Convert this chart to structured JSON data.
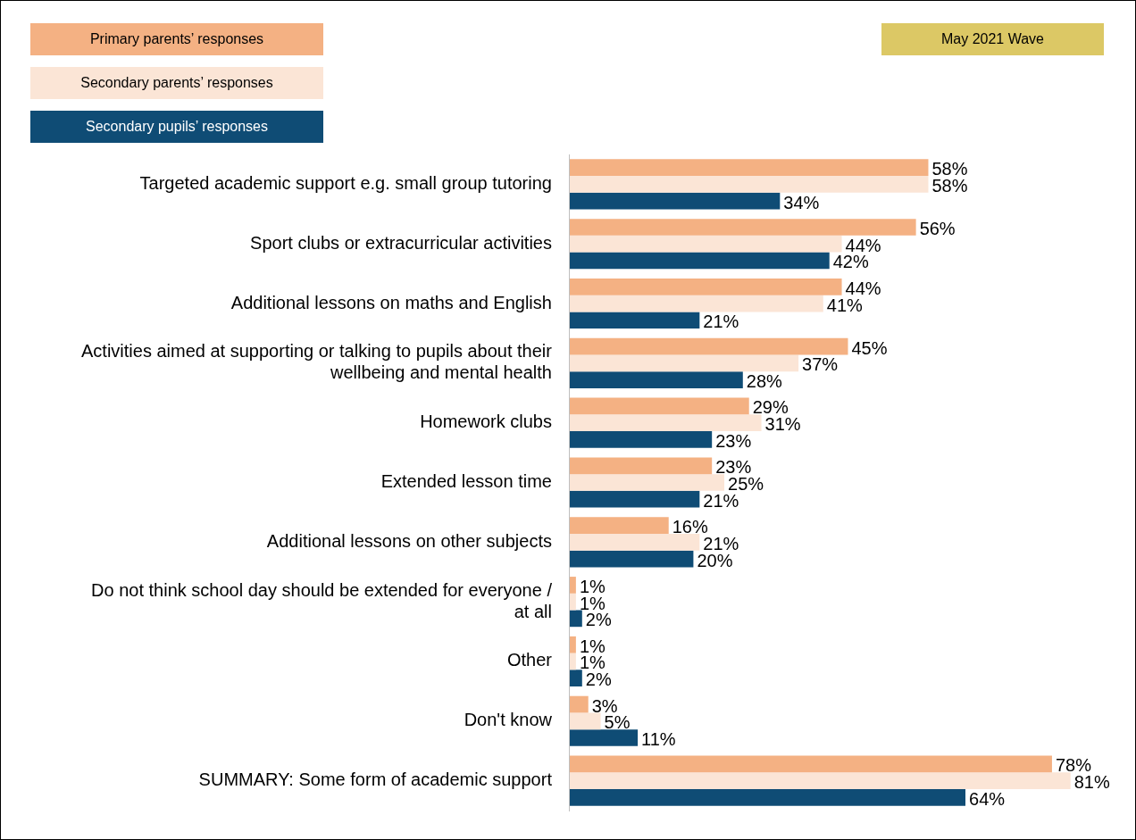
{
  "chart_data": {
    "type": "bar",
    "orientation": "horizontal",
    "categories": [
      "Targeted academic support e.g. small group tutoring",
      "Sport clubs or extracurricular activities",
      "Additional lessons on maths and English",
      "Activities aimed at supporting or talking to pupils about their wellbeing and mental health",
      "Homework clubs",
      "Extended lesson time",
      "Additional lessons on other subjects",
      "Do not think school day should be extended for everyone / at all",
      "Other",
      "Don't know",
      "SUMMARY: Some form of academic support"
    ],
    "series": [
      {
        "name": "Primary parents’ responses",
        "color": "#f4b183",
        "values": [
          58,
          56,
          44,
          45,
          29,
          23,
          16,
          1,
          1,
          3,
          78
        ],
        "value_labels": [
          "58%",
          "56%",
          "44%",
          "45%",
          "29%",
          "23%",
          "16%",
          "1%",
          "1%",
          "3%",
          "78%"
        ]
      },
      {
        "name": "Secondary parents’ responses",
        "color": "#fbe5d6",
        "values": [
          58,
          44,
          41,
          37,
          31,
          25,
          21,
          1,
          1,
          5,
          81
        ],
        "value_labels": [
          "58%",
          "44%",
          "41%",
          "37%",
          "31%",
          "25%",
          "21%",
          "1%",
          "1%",
          "5%",
          "81%"
        ]
      },
      {
        "name": "Secondary pupils’ responses",
        "color": "#0f4c75",
        "values": [
          34,
          42,
          21,
          28,
          23,
          21,
          20,
          2,
          2,
          11,
          64
        ],
        "value_labels": [
          "34%",
          "42%",
          "21%",
          "28%",
          "23%",
          "21%",
          "20%",
          "2%",
          "2%",
          "11%",
          "64%"
        ]
      }
    ],
    "annotations": [
      "May 2021 Wave"
    ],
    "legend": "top left"
  }
}
